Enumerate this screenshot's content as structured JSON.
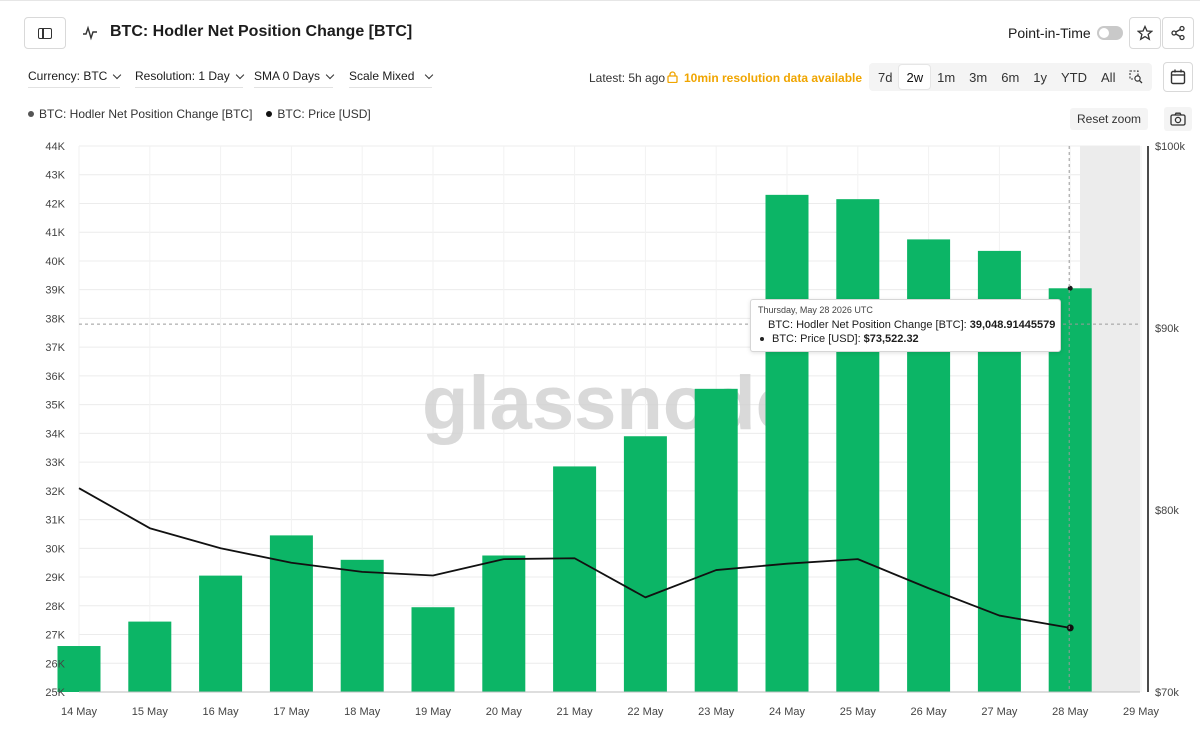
{
  "header": {
    "title": "BTC: Hodler Net Position Change [BTC]",
    "point_in_time_label": "Point-in-Time",
    "icons": [
      "sidebar-icon",
      "metric-icon",
      "star-icon",
      "share-icon"
    ]
  },
  "controls": {
    "currency": "Currency: BTC",
    "resolution": "Resolution: 1 Day",
    "sma": "SMA 0 Days",
    "scale": "Scale Mixed",
    "latest": "Latest: 5h ago",
    "ten_min": "10min resolution data available",
    "ranges": [
      "7d",
      "2w",
      "1m",
      "3m",
      "6m",
      "1y",
      "YTD",
      "All"
    ],
    "active_range": "2w",
    "accent_color": "#f0a500"
  },
  "legend": {
    "series": [
      {
        "label": "BTC: Hodler Net Position Change [BTC]",
        "color": "#555555"
      },
      {
        "label": "BTC: Price [USD]",
        "color": "#111111"
      }
    ],
    "reset_zoom": "Reset zoom"
  },
  "tooltip": {
    "date": "Thursday, May 28 2026 UTC",
    "rows": [
      {
        "label": "BTC: Hodler Net Position Change [BTC]:",
        "value": "39,048.91445579"
      },
      {
        "label": "BTC: Price [USD]:",
        "value": "$73,522.32"
      }
    ]
  },
  "chart_data": {
    "type": "bar",
    "categories": [
      "14 May",
      "15 May",
      "16 May",
      "17 May",
      "18 May",
      "19 May",
      "20 May",
      "21 May",
      "22 May",
      "23 May",
      "24 May",
      "25 May",
      "26 May",
      "27 May",
      "28 May"
    ],
    "x_ticks": [
      "14 May",
      "15 May",
      "16 May",
      "17 May",
      "18 May",
      "19 May",
      "20 May",
      "21 May",
      "22 May",
      "23 May",
      "24 May",
      "25 May",
      "26 May",
      "27 May",
      "28 May",
      "29 May"
    ],
    "series": [
      {
        "name": "BTC: Hodler Net Position Change [BTC]",
        "type": "bar",
        "axis": "left",
        "color": "#0cb566",
        "values": [
          26600,
          27450,
          29050,
          30450,
          29600,
          27950,
          29750,
          32850,
          33900,
          35550,
          42300,
          42150,
          40750,
          40350,
          39048.91
        ]
      },
      {
        "name": "BTC: Price [USD]",
        "type": "line",
        "axis": "right",
        "color": "#111111",
        "values": [
          81200,
          79000,
          77900,
          77100,
          76600,
          76400,
          77300,
          77350,
          75200,
          76700,
          77050,
          77300,
          75700,
          74200,
          73522.32
        ]
      }
    ],
    "y_left": {
      "ticks": [
        "25K",
        "26K",
        "27K",
        "28K",
        "29K",
        "30K",
        "31K",
        "32K",
        "33K",
        "34K",
        "35K",
        "36K",
        "37K",
        "38K",
        "39K",
        "40K",
        "41K",
        "42K",
        "43K",
        "44K"
      ],
      "range": [
        25000,
        44000
      ]
    },
    "y_right": {
      "ticks": [
        "$70k",
        "$80k",
        "$90k",
        "$100k"
      ],
      "tick_values": [
        70000,
        80000,
        90000,
        100000
      ],
      "range": [
        70000,
        100000
      ]
    },
    "watermark": "glassnode",
    "crosshair_value": 37800,
    "grid": true,
    "legend_position": "top-left"
  }
}
